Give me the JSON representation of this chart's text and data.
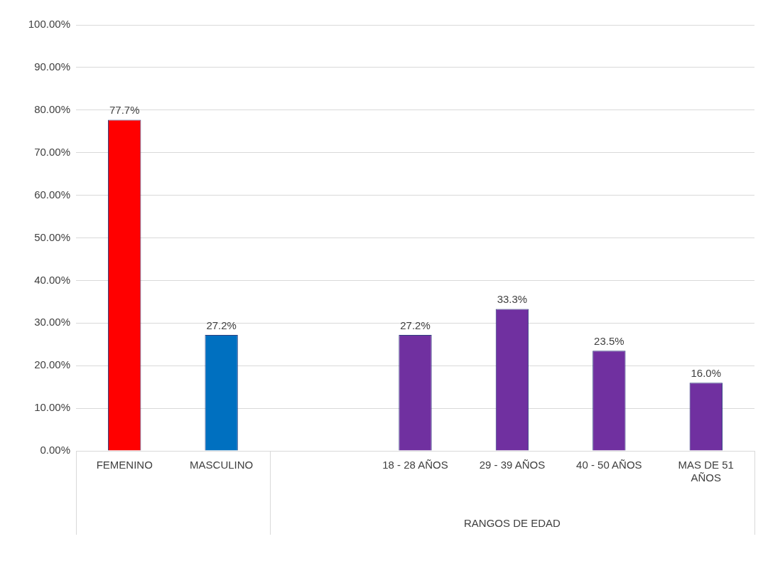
{
  "chart_data": {
    "type": "bar",
    "categories": [
      "FEMENINO",
      "MASCULINO",
      null,
      "18 - 28 AÑOS",
      "29 - 39 AÑOS",
      "40 - 50 AÑOS",
      "MAS DE 51 AÑOS"
    ],
    "values": [
      77.7,
      27.2,
      null,
      27.2,
      33.3,
      23.5,
      16.0
    ],
    "value_labels": [
      "77.7%",
      "27.2%",
      null,
      "27.2%",
      "33.3%",
      "23.5%",
      "16.0%"
    ],
    "colors": [
      "#ff0000",
      "#0070c0",
      "#7030a0",
      "#7030a0",
      "#7030a0",
      "#7030a0",
      "#7030a0"
    ],
    "xlabel": "RANGOS DE EDAD",
    "ylim": [
      0,
      100
    ],
    "yticks": [
      {
        "value": 0,
        "label": "0.00%"
      },
      {
        "value": 10,
        "label": "10.00%"
      },
      {
        "value": 20,
        "label": "20.00%"
      },
      {
        "value": 30,
        "label": "30.00%"
      },
      {
        "value": 40,
        "label": "40.00%"
      },
      {
        "value": 50,
        "label": "50.00%"
      },
      {
        "value": 60,
        "label": "60.00%"
      },
      {
        "value": 70,
        "label": "70.00%"
      },
      {
        "value": 80,
        "label": "80.00%"
      },
      {
        "value": 90,
        "label": "90.00%"
      },
      {
        "value": 100,
        "label": "100.00%"
      }
    ],
    "grid": "y",
    "legend": false
  }
}
